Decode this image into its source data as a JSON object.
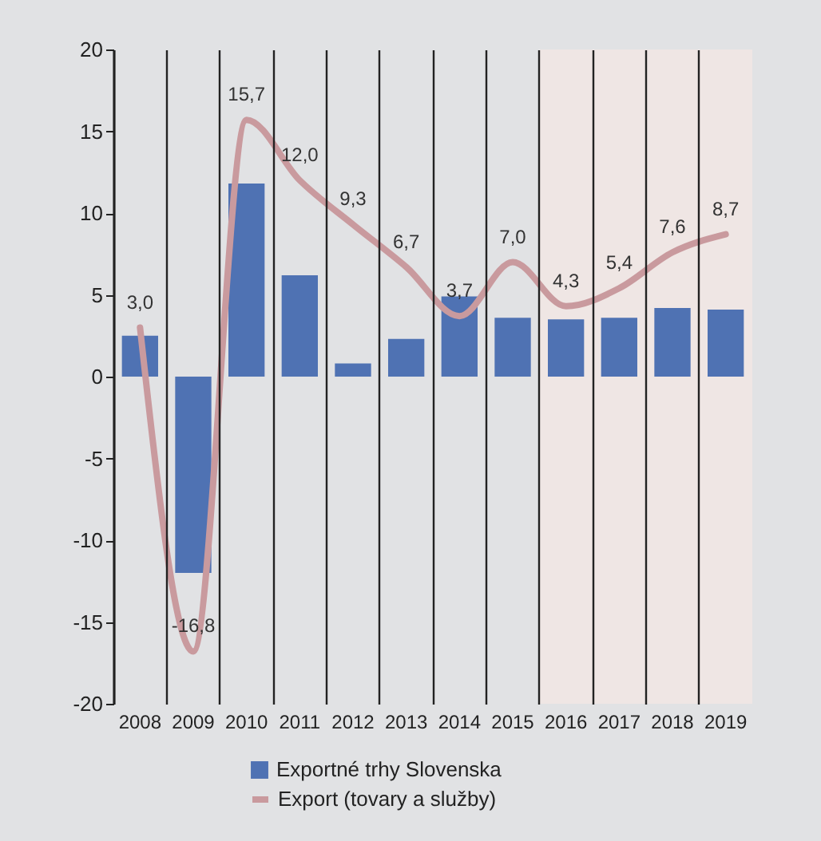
{
  "chart_data": {
    "type": "bar",
    "categories": [
      "2008",
      "2009",
      "2010",
      "2011",
      "2012",
      "2013",
      "2014",
      "2015",
      "2016",
      "2017",
      "2018",
      "2019"
    ],
    "series": [
      {
        "name": "Exportné trhy Slovenska",
        "color": "#4f72b3",
        "values": [
          2.5,
          -12.0,
          11.8,
          6.2,
          0.8,
          2.3,
          4.9,
          3.6,
          3.5,
          3.6,
          4.2,
          4.1
        ]
      },
      {
        "name": "Export (tovary a služby)",
        "type": "line",
        "color": "#c99a9e",
        "values": [
          3.0,
          -16.8,
          15.7,
          12.0,
          9.3,
          6.7,
          3.7,
          7.0,
          4.3,
          5.4,
          7.6,
          8.7
        ],
        "value_labels": [
          "3,0",
          "-16,8",
          "15,7",
          "12,0",
          "9,3",
          "6,7",
          "3,7",
          "7,0",
          "4,3",
          "5,4",
          "7,6",
          "8,7"
        ]
      }
    ],
    "ylim": [
      -20,
      20
    ],
    "yticks": [
      -20,
      -15,
      -10,
      -5,
      0,
      5,
      10,
      15,
      20
    ],
    "bands": [
      {
        "axis": "x",
        "from": "2016",
        "to": "2019",
        "color": "#efe6e4"
      }
    ],
    "grid": "x",
    "legend": "bottom"
  }
}
